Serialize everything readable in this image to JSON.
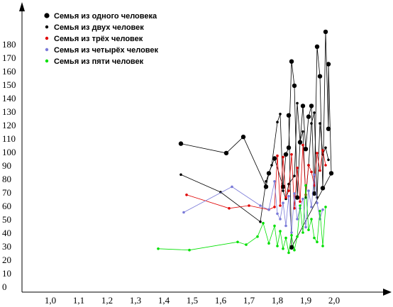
{
  "chart_data": {
    "type": "line",
    "title": "",
    "xlabel": "",
    "ylabel": "",
    "xlim": [
      0.95,
      2.15
    ],
    "ylim": [
      0,
      190
    ],
    "x_ticks": [
      "1,0",
      "1,1",
      "1,2",
      "1,3",
      "1,4",
      "1,5",
      "1,6",
      "1,7",
      "1,8",
      "1,9",
      "2,0"
    ],
    "y_ticks": [
      "0",
      "10",
      "20",
      "30",
      "40",
      "50",
      "60",
      "70",
      "80",
      "90",
      "100",
      "110",
      "120",
      "130",
      "140",
      "150",
      "160",
      "170",
      "180"
    ],
    "legend_position": "top-left",
    "series": [
      {
        "name": "Семья из одного человека",
        "color": "#000000",
        "marker": "large-dot",
        "points": [
          [
            1.46,
            106
          ],
          [
            1.62,
            99
          ],
          [
            1.68,
            111
          ],
          [
            1.76,
            74
          ],
          [
            1.77,
            84
          ],
          [
            1.79,
            95
          ],
          [
            1.82,
            74
          ],
          [
            1.83,
            98
          ],
          [
            1.84,
            103
          ],
          [
            1.85,
            167
          ],
          [
            1.86,
            149
          ],
          [
            1.87,
            66
          ],
          [
            1.88,
            107
          ],
          [
            1.89,
            134
          ],
          [
            1.9,
            102
          ],
          [
            1.91,
            126
          ],
          [
            1.92,
            134
          ],
          [
            1.93,
            69
          ],
          [
            1.94,
            178
          ],
          [
            1.95,
            156
          ],
          [
            1.96,
            73
          ],
          [
            1.97,
            189
          ],
          [
            1.98,
            117
          ],
          [
            1.98,
            165
          ],
          [
            1.99,
            84
          ],
          [
            1.85,
            29
          ],
          [
            1.84,
            127
          ]
        ]
      },
      {
        "name": "Семья из двух человек",
        "color": "#000000",
        "marker": "small-dot",
        "points": [
          [
            1.46,
            83
          ],
          [
            1.6,
            70
          ],
          [
            1.74,
            48
          ],
          [
            1.76,
            78
          ],
          [
            1.78,
            90
          ],
          [
            1.8,
            122
          ],
          [
            1.81,
            128
          ],
          [
            1.82,
            71
          ],
          [
            1.83,
            65
          ],
          [
            1.84,
            76
          ],
          [
            1.86,
            82
          ],
          [
            1.87,
            136
          ],
          [
            1.88,
            108
          ],
          [
            1.89,
            115
          ],
          [
            1.9,
            66
          ],
          [
            1.91,
            90
          ],
          [
            1.92,
            121
          ],
          [
            1.93,
            129
          ],
          [
            1.94,
            66
          ],
          [
            1.95,
            121
          ],
          [
            1.96,
            98
          ],
          [
            1.97,
            103
          ],
          [
            1.98,
            94
          ]
        ]
      },
      {
        "name": "Семья из трёх человек",
        "color": "#e00000",
        "marker": "small-dot",
        "points": [
          [
            1.48,
            68
          ],
          [
            1.63,
            58
          ],
          [
            1.7,
            60
          ],
          [
            1.77,
            57
          ],
          [
            1.79,
            59
          ],
          [
            1.8,
            97
          ],
          [
            1.81,
            60
          ],
          [
            1.82,
            96
          ],
          [
            1.83,
            66
          ],
          [
            1.84,
            71
          ],
          [
            1.85,
            98
          ],
          [
            1.86,
            58
          ],
          [
            1.87,
            88
          ],
          [
            1.88,
            63
          ],
          [
            1.89,
            105
          ],
          [
            1.9,
            68
          ],
          [
            1.91,
            90
          ],
          [
            1.92,
            85
          ],
          [
            1.93,
            75
          ],
          [
            1.94,
            99
          ],
          [
            1.95,
            86
          ],
          [
            1.96,
            101
          ],
          [
            1.97,
            90
          ]
        ]
      },
      {
        "name": "Семья из четырёх человек",
        "color": "#7a7ad8",
        "marker": "small-dot",
        "points": [
          [
            1.47,
            55
          ],
          [
            1.64,
            74
          ],
          [
            1.74,
            60
          ],
          [
            1.77,
            57
          ],
          [
            1.79,
            78
          ],
          [
            1.8,
            54
          ],
          [
            1.81,
            50
          ],
          [
            1.82,
            62
          ],
          [
            1.83,
            45
          ],
          [
            1.84,
            67
          ],
          [
            1.85,
            40
          ],
          [
            1.86,
            69
          ],
          [
            1.87,
            50
          ],
          [
            1.88,
            58
          ],
          [
            1.89,
            65
          ],
          [
            1.9,
            44
          ],
          [
            1.91,
            71
          ],
          [
            1.92,
            59
          ],
          [
            1.93,
            83
          ],
          [
            1.94,
            62
          ],
          [
            1.95,
            50
          ],
          [
            1.96,
            57
          ]
        ]
      },
      {
        "name": "Семья из пяти человек",
        "color": "#00e000",
        "marker": "small-dot",
        "points": [
          [
            1.38,
            28
          ],
          [
            1.49,
            27
          ],
          [
            1.66,
            33
          ],
          [
            1.69,
            31
          ],
          [
            1.73,
            37
          ],
          [
            1.75,
            47
          ],
          [
            1.77,
            32
          ],
          [
            1.79,
            45
          ],
          [
            1.8,
            30
          ],
          [
            1.81,
            41
          ],
          [
            1.82,
            28
          ],
          [
            1.83,
            36
          ],
          [
            1.84,
            25
          ],
          [
            1.85,
            38
          ],
          [
            1.86,
            27
          ],
          [
            1.87,
            37
          ],
          [
            1.88,
            60
          ],
          [
            1.89,
            40
          ],
          [
            1.9,
            75
          ],
          [
            1.91,
            42
          ],
          [
            1.92,
            50
          ],
          [
            1.93,
            36
          ],
          [
            1.94,
            33
          ],
          [
            1.95,
            56
          ],
          [
            1.96,
            30
          ],
          [
            1.97,
            59
          ]
        ]
      }
    ]
  }
}
